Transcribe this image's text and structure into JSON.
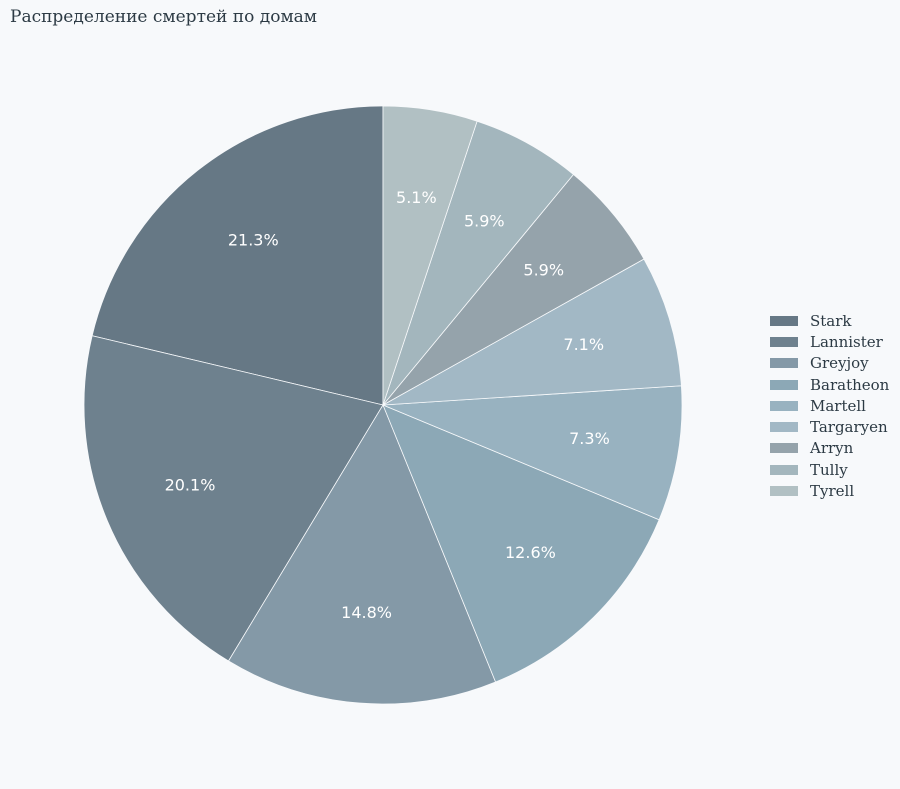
{
  "chart_data": {
    "type": "pie",
    "title": "Распределение смертей по домам",
    "categories": [
      "Stark",
      "Lannister",
      "Greyjoy",
      "Baratheon",
      "Martell",
      "Targaryen",
      "Arryn",
      "Tully",
      "Tyrell"
    ],
    "values": [
      21.3,
      20.1,
      14.8,
      12.6,
      7.3,
      7.1,
      5.9,
      5.9,
      5.1
    ],
    "labels": [
      "21.3%",
      "20.1%",
      "14.8%",
      "12.6%",
      "7.3%",
      "7.1%",
      "5.9%",
      "5.9%",
      "5.1%"
    ],
    "colors": [
      "#667885",
      "#6e818e",
      "#8499a7",
      "#8ca8b6",
      "#98b2c0",
      "#a2b8c5",
      "#95a3ab",
      "#a3b6bd",
      "#b1c0c3"
    ],
    "legend_position": "right",
    "start_angle": "top",
    "direction": "counterclockwise"
  }
}
